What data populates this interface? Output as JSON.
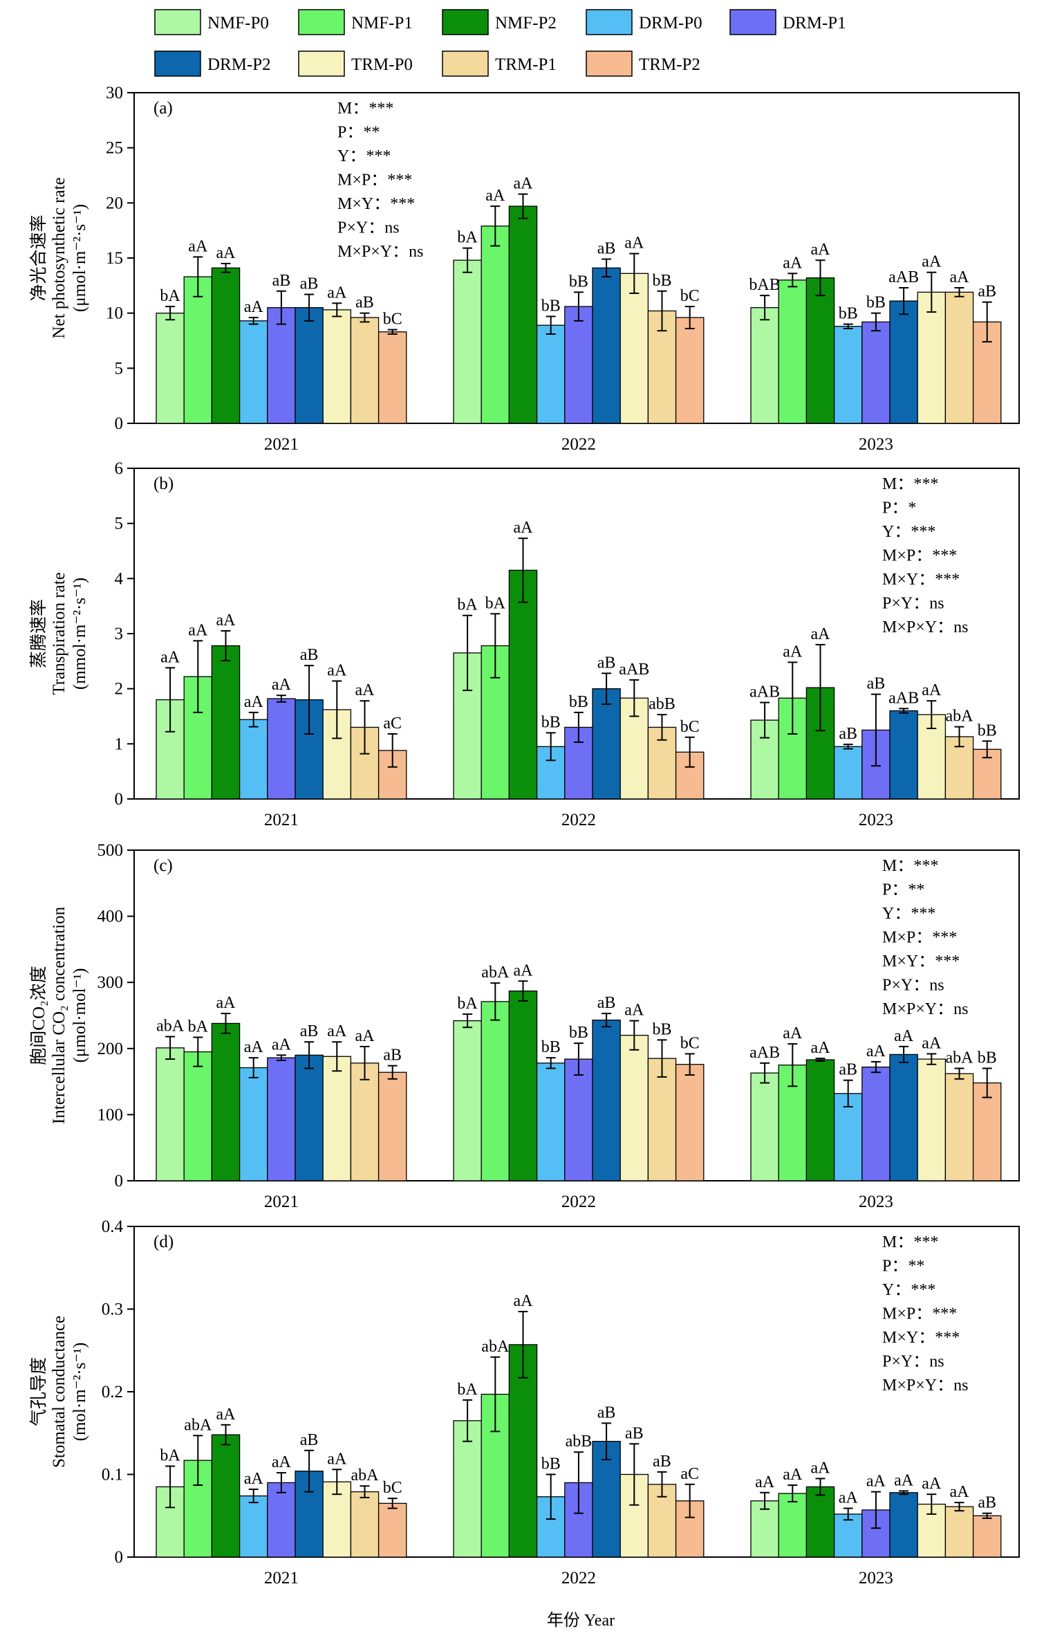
{
  "legend": [
    {
      "name": "NMF-P0",
      "color": "#aef7a3"
    },
    {
      "name": "NMF-P1",
      "color": "#6bf56b"
    },
    {
      "name": "NMF-P2",
      "color": "#0b8f0b"
    },
    {
      "name": "DRM-P0",
      "color": "#55bff5"
    },
    {
      "name": "DRM-P1",
      "color": "#6f6ff5"
    },
    {
      "name": "DRM-P2",
      "color": "#0d67ad"
    },
    {
      "name": "TRM-P0",
      "color": "#f6f3bf"
    },
    {
      "name": "TRM-P1",
      "color": "#f3d99b"
    },
    {
      "name": "TRM-P2",
      "color": "#f6bb91"
    }
  ],
  "xlabel": "年份 Year",
  "categories": [
    "2021",
    "2022",
    "2023"
  ],
  "chart_data": [
    {
      "type": "bar",
      "panel": "(a)",
      "ylabel_cn": "净光合速率",
      "ylabel_en": "Net photosynthetic rate",
      "ylabel_unit": "(μmol·m⁻²·s⁻¹)",
      "ylim": [
        0,
        30
      ],
      "yticks": [
        "0",
        "5",
        "10",
        "15",
        "20",
        "25",
        "30"
      ],
      "categories": [
        "2021",
        "2022",
        "2023"
      ],
      "series": [
        {
          "name": "NMF-P0",
          "values": [
            10.0,
            14.8,
            10.5
          ],
          "errors": [
            0.6,
            1.1,
            1.1
          ],
          "labels": [
            "bA",
            "bA",
            "bAB"
          ]
        },
        {
          "name": "NMF-P1",
          "values": [
            13.3,
            17.9,
            13.0
          ],
          "errors": [
            1.8,
            1.8,
            0.6
          ],
          "labels": [
            "aA",
            "aA",
            "aA"
          ]
        },
        {
          "name": "NMF-P2",
          "values": [
            14.1,
            19.7,
            13.2
          ],
          "errors": [
            0.4,
            1.1,
            1.6
          ],
          "labels": [
            "aA",
            "aA",
            "aA"
          ]
        },
        {
          "name": "DRM-P0",
          "values": [
            9.3,
            8.9,
            8.8
          ],
          "errors": [
            0.3,
            0.8,
            0.2
          ],
          "labels": [
            "aA",
            "bB",
            "bB"
          ]
        },
        {
          "name": "DRM-P1",
          "values": [
            10.5,
            10.6,
            9.2
          ],
          "errors": [
            1.5,
            1.3,
            0.8
          ],
          "labels": [
            "aB",
            "bB",
            "bB"
          ]
        },
        {
          "name": "DRM-P2",
          "values": [
            10.5,
            14.1,
            11.1
          ],
          "errors": [
            1.2,
            0.8,
            1.2
          ],
          "labels": [
            "aB",
            "aB",
            "aAB"
          ]
        },
        {
          "name": "TRM-P0",
          "values": [
            10.3,
            13.6,
            11.9
          ],
          "errors": [
            0.6,
            1.8,
            1.8
          ],
          "labels": [
            "aA",
            "aA",
            "aA"
          ]
        },
        {
          "name": "TRM-P1",
          "values": [
            9.6,
            10.2,
            11.9
          ],
          "errors": [
            0.4,
            1.8,
            0.4
          ],
          "labels": [
            "aB",
            "bB",
            "aA"
          ]
        },
        {
          "name": "TRM-P2",
          "values": [
            8.3,
            9.6,
            9.2
          ],
          "errors": [
            0.2,
            1.0,
            1.8
          ],
          "labels": [
            "bC",
            "bC",
            "aB"
          ]
        }
      ],
      "stats": [
        "M：***",
        "P：**",
        "Y：***",
        "M×P：***",
        "M×Y：***",
        "P×Y：ns",
        "M×P×Y：ns"
      ],
      "stats_position": "top-left"
    },
    {
      "type": "bar",
      "panel": "(b)",
      "ylabel_cn": "蒸腾速率",
      "ylabel_en": "Transpiration rate",
      "ylabel_unit": "(mmol·m⁻²·s⁻¹)",
      "ylim": [
        0,
        6
      ],
      "yticks": [
        "0",
        "1",
        "2",
        "3",
        "4",
        "5",
        "6"
      ],
      "categories": [
        "2021",
        "2022",
        "2023"
      ],
      "series": [
        {
          "name": "NMF-P0",
          "values": [
            1.8,
            2.65,
            1.43
          ],
          "errors": [
            0.58,
            0.68,
            0.32
          ],
          "labels": [
            "aA",
            "bA",
            "aAB"
          ]
        },
        {
          "name": "NMF-P1",
          "values": [
            2.22,
            2.78,
            1.83
          ],
          "errors": [
            0.65,
            0.58,
            0.65
          ],
          "labels": [
            "aA",
            "bA",
            "aA"
          ]
        },
        {
          "name": "NMF-P2",
          "values": [
            2.78,
            4.15,
            2.02
          ],
          "errors": [
            0.27,
            0.58,
            0.78
          ],
          "labels": [
            "aA",
            "aA",
            "aA"
          ]
        },
        {
          "name": "DRM-P0",
          "values": [
            1.44,
            0.95,
            0.95
          ],
          "errors": [
            0.13,
            0.25,
            0.04
          ],
          "labels": [
            "aA",
            "bB",
            "aB"
          ]
        },
        {
          "name": "DRM-P1",
          "values": [
            1.82,
            1.3,
            1.25
          ],
          "errors": [
            0.06,
            0.27,
            0.65
          ],
          "labels": [
            "aA",
            "bB",
            "aB"
          ]
        },
        {
          "name": "DRM-P2",
          "values": [
            1.8,
            2.0,
            1.6
          ],
          "errors": [
            0.62,
            0.28,
            0.04
          ],
          "labels": [
            "aB",
            "aB",
            "aAB"
          ]
        },
        {
          "name": "TRM-P0",
          "values": [
            1.62,
            1.83,
            1.53
          ],
          "errors": [
            0.52,
            0.33,
            0.25
          ],
          "labels": [
            "aA",
            "aAB",
            "aA"
          ]
        },
        {
          "name": "TRM-P1",
          "values": [
            1.3,
            1.3,
            1.13
          ],
          "errors": [
            0.48,
            0.23,
            0.18
          ],
          "labels": [
            "aA",
            "abB",
            "abA"
          ]
        },
        {
          "name": "TRM-P2",
          "values": [
            0.88,
            0.85,
            0.9
          ],
          "errors": [
            0.3,
            0.27,
            0.15
          ],
          "labels": [
            "aC",
            "bC",
            "bB"
          ]
        }
      ],
      "stats": [
        "M：***",
        "P：*",
        "Y：***",
        "M×P：***",
        "M×Y：***",
        "P×Y：ns",
        "M×P×Y：ns"
      ],
      "stats_position": "top-right"
    },
    {
      "type": "bar",
      "panel": "(c)",
      "ylabel_cn": "胞间CO₂浓度",
      "ylabel_en": "Intercellular CO₂ concentration",
      "ylabel_unit": "(μmol·mol⁻¹)",
      "ylim": [
        0,
        500
      ],
      "yticks": [
        "0",
        "100",
        "200",
        "300",
        "400",
        "500"
      ],
      "categories": [
        "2021",
        "2022",
        "2023"
      ],
      "series": [
        {
          "name": "NMF-P0",
          "values": [
            201,
            242,
            163
          ],
          "errors": [
            17,
            10,
            15
          ],
          "labels": [
            "abA",
            "bA",
            "aAB"
          ]
        },
        {
          "name": "NMF-P1",
          "values": [
            195,
            271,
            175
          ],
          "errors": [
            22,
            28,
            32
          ],
          "labels": [
            "bA",
            "abA",
            "aA"
          ]
        },
        {
          "name": "NMF-P2",
          "values": [
            238,
            287,
            183
          ],
          "errors": [
            15,
            15,
            2
          ],
          "labels": [
            "aA",
            "aA",
            "aA"
          ]
        },
        {
          "name": "DRM-P0",
          "values": [
            171,
            178,
            132
          ],
          "errors": [
            15,
            8,
            20
          ],
          "labels": [
            "aA",
            "bB",
            "aB"
          ]
        },
        {
          "name": "DRM-P1",
          "values": [
            186,
            184,
            172
          ],
          "errors": [
            4,
            24,
            8
          ],
          "labels": [
            "aA",
            "bB",
            "aA"
          ]
        },
        {
          "name": "DRM-P2",
          "values": [
            190,
            243,
            191
          ],
          "errors": [
            20,
            10,
            12
          ],
          "labels": [
            "aB",
            "aB",
            "aA"
          ]
        },
        {
          "name": "TRM-P0",
          "values": [
            188,
            220,
            184
          ],
          "errors": [
            22,
            22,
            8
          ],
          "labels": [
            "aA",
            "aA",
            "aA"
          ]
        },
        {
          "name": "TRM-P1",
          "values": [
            178,
            185,
            162
          ],
          "errors": [
            25,
            28,
            8
          ],
          "labels": [
            "aA",
            "bB",
            "abA"
          ]
        },
        {
          "name": "TRM-P2",
          "values": [
            164,
            176,
            148
          ],
          "errors": [
            10,
            16,
            22
          ],
          "labels": [
            "aB",
            "bC",
            "bB"
          ]
        }
      ],
      "stats": [
        "M：***",
        "P：**",
        "Y：***",
        "M×P：***",
        "M×Y：***",
        "P×Y：ns",
        "M×P×Y：ns"
      ],
      "stats_position": "top-right"
    },
    {
      "type": "bar",
      "panel": "(d)",
      "ylabel_cn": "气孔导度",
      "ylabel_en": "Stomatal conductance",
      "ylabel_unit": "(mol·m⁻²·s⁻¹)",
      "ylim": [
        0,
        0.4
      ],
      "yticks": [
        "0",
        "0.1",
        "0.2",
        "0.3",
        "0.4"
      ],
      "categories": [
        "2021",
        "2022",
        "2023"
      ],
      "series": [
        {
          "name": "NMF-P0",
          "values": [
            0.085,
            0.165,
            0.068
          ],
          "errors": [
            0.025,
            0.025,
            0.01
          ],
          "labels": [
            "bA",
            "bA",
            "aA"
          ]
        },
        {
          "name": "NMF-P1",
          "values": [
            0.117,
            0.197,
            0.077
          ],
          "errors": [
            0.03,
            0.045,
            0.01
          ],
          "labels": [
            "abA",
            "abA",
            "aA"
          ]
        },
        {
          "name": "NMF-P2",
          "values": [
            0.148,
            0.257,
            0.085
          ],
          "errors": [
            0.012,
            0.04,
            0.01
          ],
          "labels": [
            "aA",
            "aA",
            "aA"
          ]
        },
        {
          "name": "DRM-P0",
          "values": [
            0.074,
            0.073,
            0.052
          ],
          "errors": [
            0.008,
            0.027,
            0.007
          ],
          "labels": [
            "aA",
            "bB",
            "aA"
          ]
        },
        {
          "name": "DRM-P1",
          "values": [
            0.09,
            0.09,
            0.057
          ],
          "errors": [
            0.012,
            0.037,
            0.022
          ],
          "labels": [
            "aA",
            "abB",
            "aA"
          ]
        },
        {
          "name": "DRM-P2",
          "values": [
            0.104,
            0.14,
            0.078
          ],
          "errors": [
            0.025,
            0.022,
            0.002
          ],
          "labels": [
            "aB",
            "aB",
            "aA"
          ]
        },
        {
          "name": "TRM-P0",
          "values": [
            0.091,
            0.1,
            0.064
          ],
          "errors": [
            0.015,
            0.037,
            0.012
          ],
          "labels": [
            "aA",
            "aB",
            "aA"
          ]
        },
        {
          "name": "TRM-P1",
          "values": [
            0.079,
            0.088,
            0.061
          ],
          "errors": [
            0.007,
            0.015,
            0.005
          ],
          "labels": [
            "abA",
            "aB",
            "aA"
          ]
        },
        {
          "name": "TRM-P2",
          "values": [
            0.065,
            0.068,
            0.05
          ],
          "errors": [
            0.006,
            0.02,
            0.003
          ],
          "labels": [
            "bC",
            "aC",
            "aB"
          ]
        }
      ],
      "stats": [
        "M：***",
        "P：**",
        "Y：***",
        "M×P：***",
        "M×Y：***",
        "P×Y：ns",
        "M×P×Y：ns"
      ],
      "stats_position": "top-right"
    }
  ]
}
